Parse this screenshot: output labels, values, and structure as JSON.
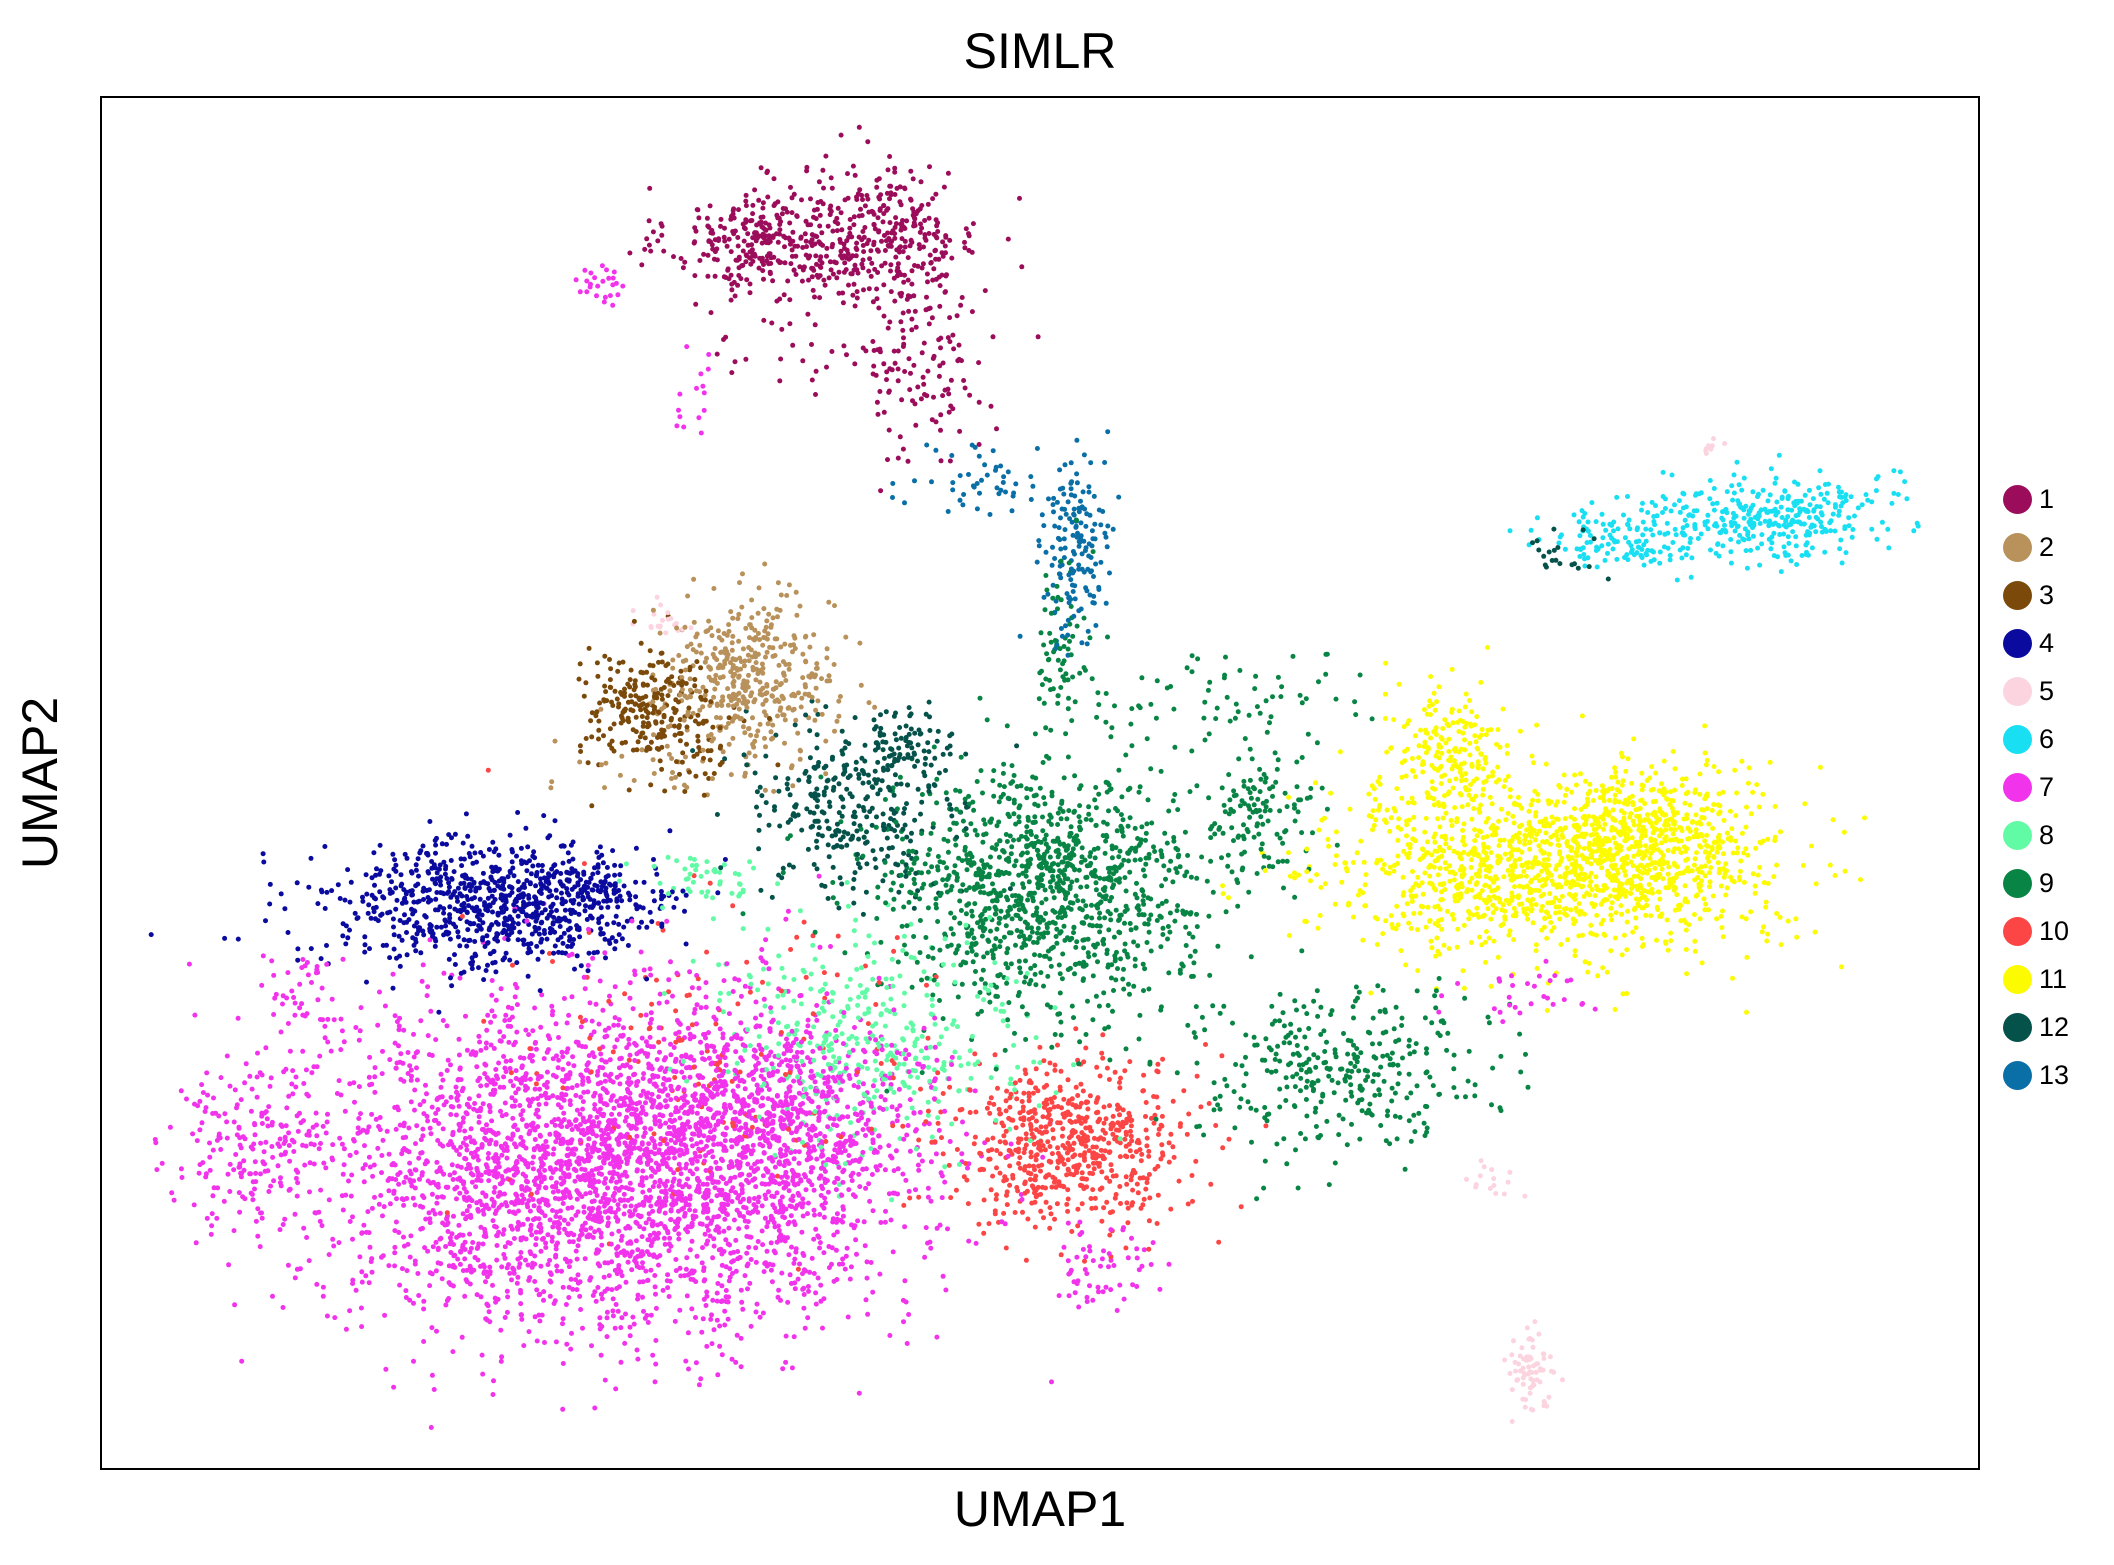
{
  "chart_data": {
    "type": "scatter",
    "title": "SIMLR",
    "xlabel": "UMAP1",
    "ylabel": "UMAP2",
    "xlim": [
      0,
      100
    ],
    "ylim": [
      0,
      100
    ],
    "grid": false,
    "ticks": false,
    "legend_position": "right",
    "series": [
      {
        "name": "1",
        "color": "#9b0d5a",
        "clusters": [
          {
            "cx": 35.5,
            "cy": 89.5,
            "sx": 2.6,
            "sy": 2.0,
            "n": 320
          },
          {
            "cx": 42.0,
            "cy": 90.0,
            "sx": 2.4,
            "sy": 2.6,
            "n": 300
          },
          {
            "cx": 44.0,
            "cy": 80.0,
            "sx": 1.6,
            "sy": 3.5,
            "n": 100
          },
          {
            "cx": 40.0,
            "cy": 82.0,
            "sx": 3.5,
            "sy": 2.0,
            "n": 50
          }
        ]
      },
      {
        "name": "2",
        "color": "#b8915b",
        "clusters": [
          {
            "cx": 34.5,
            "cy": 57.5,
            "sx": 2.3,
            "sy": 3.0,
            "n": 420
          },
          {
            "cx": 30.0,
            "cy": 52.0,
            "sx": 3.0,
            "sy": 1.5,
            "n": 30
          }
        ]
      },
      {
        "name": "3",
        "color": "#7b4a0b",
        "clusters": [
          {
            "cx": 29.0,
            "cy": 55.5,
            "sx": 1.8,
            "sy": 2.0,
            "n": 220
          },
          {
            "cx": 32.0,
            "cy": 52.5,
            "sx": 1.5,
            "sy": 1.5,
            "n": 40
          }
        ]
      },
      {
        "name": "4",
        "color": "#0a0a9f",
        "clusters": [
          {
            "cx": 20.0,
            "cy": 41.0,
            "sx": 4.2,
            "sy": 2.4,
            "n": 720
          },
          {
            "cx": 26.5,
            "cy": 41.5,
            "sx": 2.0,
            "sy": 1.8,
            "n": 170
          }
        ]
      },
      {
        "name": "5",
        "color": "#fbd4e0",
        "clusters": [
          {
            "cx": 76.0,
            "cy": 7.0,
            "sx": 0.6,
            "sy": 1.5,
            "n": 70
          },
          {
            "cx": 74.0,
            "cy": 21.0,
            "sx": 0.8,
            "sy": 0.8,
            "n": 15
          },
          {
            "cx": 30.0,
            "cy": 62.0,
            "sx": 0.8,
            "sy": 0.8,
            "n": 20
          },
          {
            "cx": 86.0,
            "cy": 74.5,
            "sx": 0.4,
            "sy": 0.4,
            "n": 8
          }
        ]
      },
      {
        "name": "6",
        "color": "#19dff2",
        "clusters": [
          {
            "cx": 89.0,
            "cy": 69.5,
            "sx": 3.0,
            "sy": 1.6,
            "n": 330
          },
          {
            "cx": 81.5,
            "cy": 67.8,
            "sx": 2.3,
            "sy": 1.2,
            "n": 130
          }
        ]
      },
      {
        "name": "7",
        "color": "#f233ec",
        "clusters": [
          {
            "cx": 27.0,
            "cy": 22.0,
            "sx": 7.5,
            "sy": 6.0,
            "n": 3200
          },
          {
            "cx": 36.0,
            "cy": 25.0,
            "sx": 4.0,
            "sy": 4.0,
            "n": 600
          },
          {
            "cx": 8.0,
            "cy": 24.0,
            "sx": 2.5,
            "sy": 3.0,
            "n": 200
          },
          {
            "cx": 10.5,
            "cy": 35.0,
            "sx": 1.0,
            "sy": 1.5,
            "n": 40
          },
          {
            "cx": 53.5,
            "cy": 14.5,
            "sx": 1.5,
            "sy": 1.5,
            "n": 60
          },
          {
            "cx": 26.5,
            "cy": 86.5,
            "sx": 0.6,
            "sy": 0.7,
            "n": 25
          },
          {
            "cx": 31.5,
            "cy": 79.0,
            "sx": 0.6,
            "sy": 2.0,
            "n": 15
          },
          {
            "cx": 76.0,
            "cy": 34.5,
            "sx": 2.0,
            "sy": 1.0,
            "n": 30
          }
        ]
      },
      {
        "name": "8",
        "color": "#62fba5",
        "clusters": [
          {
            "cx": 41.0,
            "cy": 31.0,
            "sx": 4.0,
            "sy": 4.0,
            "n": 380
          },
          {
            "cx": 32.0,
            "cy": 43.0,
            "sx": 2.0,
            "sy": 1.0,
            "n": 50
          }
        ]
      },
      {
        "name": "9",
        "color": "#088545",
        "clusters": [
          {
            "cx": 50.0,
            "cy": 42.0,
            "sx": 4.5,
            "sy": 4.5,
            "n": 1150
          },
          {
            "cx": 61.5,
            "cy": 47.5,
            "sx": 1.5,
            "sy": 2.5,
            "n": 120
          },
          {
            "cx": 66.0,
            "cy": 29.0,
            "sx": 4.0,
            "sy": 3.2,
            "n": 330
          },
          {
            "cx": 51.0,
            "cy": 60.0,
            "sx": 0.7,
            "sy": 3.0,
            "n": 70
          },
          {
            "cx": 59.0,
            "cy": 56.0,
            "sx": 4.0,
            "sy": 2.0,
            "n": 70
          }
        ]
      },
      {
        "name": "10",
        "color": "#fc4545",
        "clusters": [
          {
            "cx": 51.5,
            "cy": 23.5,
            "sx": 3.2,
            "sy": 3.0,
            "n": 620
          },
          {
            "cx": 33.0,
            "cy": 30.0,
            "sx": 6.0,
            "sy": 6.0,
            "n": 150
          }
        ]
      },
      {
        "name": "11",
        "color": "#fcfb00",
        "clusters": [
          {
            "cx": 77.0,
            "cy": 43.5,
            "sx": 6.0,
            "sy": 3.2,
            "n": 1150
          },
          {
            "cx": 82.5,
            "cy": 46.0,
            "sx": 2.8,
            "sy": 2.6,
            "n": 450
          },
          {
            "cx": 72.0,
            "cy": 52.0,
            "sx": 1.7,
            "sy": 2.5,
            "n": 200
          }
        ]
      },
      {
        "name": "12",
        "color": "#05524a",
        "clusters": [
          {
            "cx": 40.0,
            "cy": 48.5,
            "sx": 2.8,
            "sy": 3.2,
            "n": 330
          },
          {
            "cx": 42.5,
            "cy": 53.0,
            "sx": 1.0,
            "sy": 1.3,
            "n": 60
          },
          {
            "cx": 78.0,
            "cy": 66.5,
            "sx": 1.2,
            "sy": 0.8,
            "n": 20
          }
        ]
      },
      {
        "name": "13",
        "color": "#0a6fa6",
        "clusters": [
          {
            "cx": 52.0,
            "cy": 67.0,
            "sx": 0.9,
            "sy": 3.0,
            "n": 160
          },
          {
            "cx": 47.0,
            "cy": 72.0,
            "sx": 2.0,
            "sy": 1.5,
            "n": 50
          }
        ]
      }
    ]
  }
}
